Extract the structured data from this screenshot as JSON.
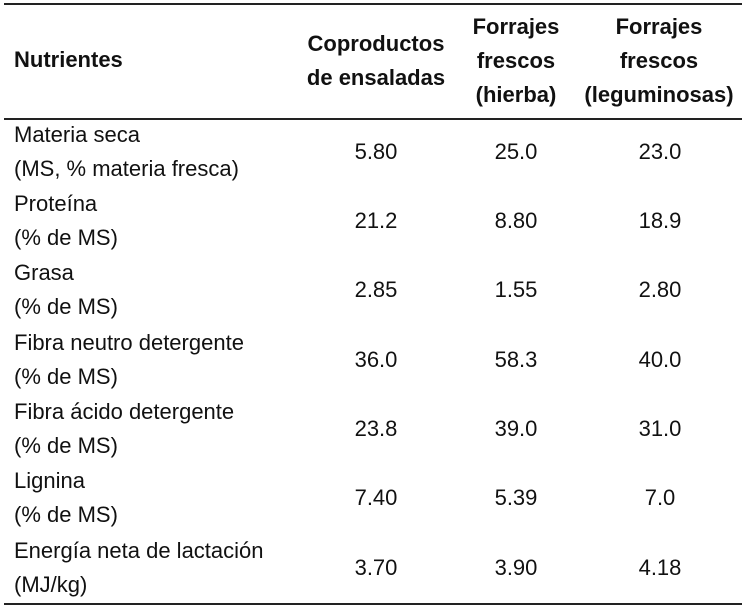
{
  "header": {
    "col0": "Nutrientes",
    "col1": [
      "Coproductos",
      "de ensaladas"
    ],
    "col2": [
      "Forrajes",
      "frescos",
      "(hierba)"
    ],
    "col3": [
      "Forrajes",
      "frescos",
      "(leguminosas)"
    ]
  },
  "rows": [
    {
      "label": [
        "Materia seca",
        "(MS, % materia fresca)"
      ],
      "values": [
        "5.80",
        "25.0",
        "23.0"
      ]
    },
    {
      "label": [
        "Proteína",
        "(% de MS)"
      ],
      "values": [
        "21.2",
        "8.80",
        "18.9"
      ]
    },
    {
      "label": [
        "Grasa",
        "(% de MS)"
      ],
      "values": [
        "2.85",
        "1.55",
        "2.80"
      ]
    },
    {
      "label": [
        "Fibra neutro detergente",
        "(% de MS)"
      ],
      "values": [
        "36.0",
        "58.3",
        "40.0"
      ]
    },
    {
      "label": [
        "Fibra ácido detergente",
        "(% de MS)"
      ],
      "values": [
        "23.8",
        "39.0",
        "31.0"
      ]
    },
    {
      "label": [
        "Lignina",
        "(% de MS)"
      ],
      "values": [
        "7.40",
        "5.39",
        "7.0"
      ]
    },
    {
      "label": [
        "Energía neta de lactación",
        "(MJ/kg)"
      ],
      "values": [
        "3.70",
        "3.90",
        "4.18"
      ]
    }
  ]
}
